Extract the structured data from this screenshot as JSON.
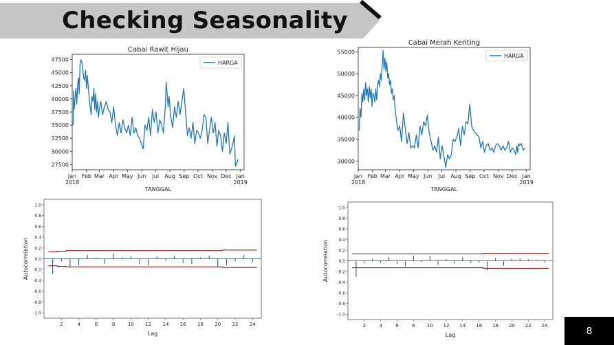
{
  "slide": {
    "title": "Checking Seasonality",
    "page_number": "8"
  },
  "chart_data": [
    {
      "id": "ts1",
      "type": "line",
      "title": "Cabai Rawit Hijau",
      "xlabel": "TANGGAL",
      "legend": {
        "label": "HARGA",
        "placement": "top-right"
      },
      "series": [
        {
          "name": "HARGA",
          "color": "#1f77b4"
        }
      ],
      "xlim": [
        0,
        373
      ],
      "ylim": [
        26500,
        48500
      ],
      "yticks": [
        27500,
        30000,
        32500,
        35000,
        37500,
        40000,
        42500,
        45000,
        47500
      ],
      "xticks": [
        {
          "pos": 0,
          "label": "Jan",
          "sub": "2018"
        },
        {
          "pos": 31,
          "label": "Feb"
        },
        {
          "pos": 59,
          "label": "Mar"
        },
        {
          "pos": 90,
          "label": "Apr"
        },
        {
          "pos": 120,
          "label": "May"
        },
        {
          "pos": 151,
          "label": "Jun"
        },
        {
          "pos": 181,
          "label": "Jul"
        },
        {
          "pos": 212,
          "label": "Aug"
        },
        {
          "pos": 243,
          "label": "Sep"
        },
        {
          "pos": 273,
          "label": "Oct"
        },
        {
          "pos": 304,
          "label": "Nov"
        },
        {
          "pos": 334,
          "label": "Dec"
        },
        {
          "pos": 365,
          "label": "Jan",
          "sub": "2019"
        }
      ],
      "x": [
        2,
        3,
        4,
        6,
        8,
        10,
        12,
        14,
        15,
        17,
        19,
        21,
        23,
        25,
        27,
        29,
        31,
        33,
        35,
        37,
        39,
        41,
        43,
        45,
        47,
        49,
        51,
        53,
        55,
        57,
        59,
        62,
        66,
        70,
        74,
        78,
        82,
        86,
        90,
        94,
        98,
        102,
        106,
        110,
        114,
        118,
        122,
        126,
        130,
        134,
        138,
        142,
        146,
        150,
        154,
        158,
        162,
        166,
        170,
        174,
        178,
        182,
        186,
        190,
        194,
        198,
        202,
        204,
        206,
        208,
        210,
        214,
        218,
        222,
        226,
        230,
        234,
        238,
        242,
        246,
        250,
        254,
        258,
        262,
        266,
        270,
        274,
        278,
        282,
        286,
        290,
        294,
        298,
        302,
        306,
        310,
        314,
        318,
        322,
        326,
        330,
        334,
        338,
        342,
        346,
        350,
        352,
        354,
        356,
        360
      ],
      "y": [
        35000,
        41500,
        38000,
        40000,
        42000,
        39000,
        43000,
        44000,
        41000,
        46500,
        47500,
        47000,
        45500,
        44000,
        43500,
        45500,
        42000,
        44500,
        42000,
        40000,
        38500,
        37000,
        40500,
        39500,
        42000,
        38000,
        41000,
        37500,
        39500,
        36500,
        38000,
        39500,
        37000,
        38500,
        39500,
        38000,
        37500,
        35500,
        38500,
        35000,
        33000,
        35500,
        33500,
        36000,
        34500,
        33500,
        35000,
        33000,
        36500,
        33500,
        34500,
        33000,
        32500,
        31500,
        30500,
        35000,
        34000,
        36500,
        33000,
        38000,
        35500,
        37500,
        33500,
        36000,
        35000,
        33500,
        38500,
        43200,
        41000,
        38500,
        40500,
        36500,
        34500,
        38500,
        36500,
        39500,
        37000,
        39500,
        42000,
        37500,
        33000,
        34500,
        32500,
        35500,
        31500,
        34000,
        33500,
        32500,
        34000,
        37000,
        36500,
        31500,
        34000,
        36500,
        33500,
        35500,
        31000,
        34000,
        33000,
        30000,
        33500,
        31500,
        35500,
        29500,
        30500,
        32000,
        33000,
        27200,
        27400,
        28500
      ]
    },
    {
      "id": "ts2",
      "type": "line",
      "title": "Cabai Merah Keriting",
      "xlabel": "TANGGAL",
      "legend": {
        "label": "HARGA",
        "placement": "top-right"
      },
      "series": [
        {
          "name": "HARGA",
          "color": "#1f77b4"
        }
      ],
      "xlim": [
        0,
        373
      ],
      "ylim": [
        28000,
        56000
      ],
      "yticks": [
        30000,
        35000,
        40000,
        45000,
        50000,
        55000
      ],
      "xticks": [
        {
          "pos": 0,
          "label": "Jan",
          "sub": "2018"
        },
        {
          "pos": 31,
          "label": "Feb"
        },
        {
          "pos": 59,
          "label": "Mar"
        },
        {
          "pos": 90,
          "label": "Apr"
        },
        {
          "pos": 120,
          "label": "May"
        },
        {
          "pos": 151,
          "label": "Jun"
        },
        {
          "pos": 181,
          "label": "Jul"
        },
        {
          "pos": 212,
          "label": "Aug"
        },
        {
          "pos": 243,
          "label": "Sep"
        },
        {
          "pos": 273,
          "label": "Oct"
        },
        {
          "pos": 304,
          "label": "Nov"
        },
        {
          "pos": 334,
          "label": "Dec"
        },
        {
          "pos": 365,
          "label": "Jan",
          "sub": "2019"
        }
      ],
      "x": [
        2,
        4,
        6,
        8,
        10,
        12,
        14,
        16,
        18,
        20,
        22,
        24,
        26,
        28,
        30,
        32,
        34,
        36,
        38,
        40,
        42,
        44,
        46,
        48,
        50,
        52,
        54,
        56,
        58,
        60,
        62,
        64,
        66,
        68,
        70,
        72,
        74,
        76,
        78,
        80,
        82,
        86,
        90,
        94,
        98,
        102,
        106,
        110,
        114,
        118,
        122,
        126,
        130,
        134,
        138,
        142,
        146,
        150,
        154,
        158,
        162,
        166,
        170,
        174,
        178,
        182,
        186,
        190,
        194,
        198,
        202,
        206,
        210,
        214,
        218,
        222,
        226,
        230,
        234,
        238,
        242,
        246,
        250,
        254,
        258,
        262,
        266,
        270,
        274,
        278,
        282,
        286,
        290,
        294,
        298,
        302,
        306,
        310,
        314,
        318,
        322,
        326,
        330,
        334,
        338,
        342,
        344,
        346,
        348,
        350,
        354,
        358,
        362
      ],
      "y": [
        37000,
        42000,
        40000,
        45500,
        43500,
        46500,
        44000,
        48000,
        45000,
        46500,
        43500,
        47000,
        44500,
        46500,
        42500,
        45500,
        45000,
        43500,
        46500,
        44000,
        47500,
        48500,
        47000,
        50000,
        48500,
        52000,
        55300,
        51000,
        53500,
        50500,
        52500,
        49000,
        50000,
        47500,
        48500,
        45500,
        46500,
        44000,
        45000,
        42000,
        40000,
        37000,
        38000,
        34500,
        41000,
        37500,
        34000,
        36500,
        33000,
        33500,
        33000,
        36000,
        33000,
        38000,
        36000,
        39000,
        38000,
        40500,
        36500,
        34500,
        32500,
        33500,
        32000,
        35500,
        30500,
        33500,
        31000,
        28500,
        31500,
        30500,
        31500,
        35000,
        34500,
        35500,
        37500,
        33500,
        38000,
        36000,
        39000,
        38500,
        43000,
        38000,
        37000,
        36500,
        36000,
        35500,
        33000,
        34500,
        32000,
        33500,
        34000,
        32500,
        33000,
        32000,
        33500,
        34000,
        33500,
        32500,
        33500,
        32500,
        33000,
        34500,
        32000,
        33000,
        32500,
        31500,
        33500,
        32000,
        34000,
        33500,
        34000,
        32500,
        33000
      ]
    },
    {
      "id": "acf1",
      "type": "bar",
      "ylabel": "Autocorrelation",
      "xlabel": "Lag",
      "xlim": [
        0,
        25
      ],
      "ylim": [
        -1.1,
        1.1
      ],
      "yticks": [
        -1.0,
        -0.8,
        -0.6,
        -0.4,
        -0.2,
        0.0,
        0.2,
        0.4,
        0.6,
        0.8,
        1.0
      ],
      "xticks": [
        2,
        4,
        6,
        8,
        10,
        12,
        14,
        16,
        18,
        20,
        22,
        24
      ],
      "lags": [
        1,
        2,
        3,
        4,
        5,
        6,
        7,
        8,
        9,
        10,
        11,
        12,
        13,
        14,
        15,
        16,
        17,
        18,
        19,
        20,
        21,
        22,
        23,
        24
      ],
      "values": [
        -0.28,
        -0.05,
        -0.16,
        -0.12,
        0.07,
        0.02,
        -0.09,
        0.1,
        0.03,
        0.05,
        -0.1,
        -0.13,
        0.04,
        -0.03,
        0.06,
        -0.08,
        -0.1,
        0.02,
        0.06,
        -0.15,
        -0.12,
        -0.05,
        0.07,
        -0.06
      ],
      "conf_upper": [
        0.13,
        0.14,
        0.15,
        0.15,
        0.15,
        0.15,
        0.15,
        0.15,
        0.15,
        0.15,
        0.15,
        0.15,
        0.15,
        0.15,
        0.15,
        0.15,
        0.15,
        0.15,
        0.15,
        0.15,
        0.16,
        0.16,
        0.16,
        0.16
      ],
      "conf_lower": [
        -0.13,
        -0.14,
        -0.15,
        -0.15,
        -0.15,
        -0.15,
        -0.15,
        -0.15,
        -0.15,
        -0.15,
        -0.15,
        -0.15,
        -0.15,
        -0.15,
        -0.15,
        -0.15,
        -0.15,
        -0.15,
        -0.15,
        -0.15,
        -0.16,
        -0.16,
        -0.16,
        -0.16
      ]
    },
    {
      "id": "acf2",
      "type": "bar",
      "ylabel": "Autocorrelation",
      "xlabel": "Lag",
      "xlim": [
        0,
        25
      ],
      "ylim": [
        -1.1,
        1.1
      ],
      "yticks": [
        -1.0,
        -0.8,
        -0.6,
        -0.4,
        -0.2,
        0.0,
        0.2,
        0.4,
        0.6,
        0.8,
        1.0
      ],
      "xticks": [
        2,
        4,
        6,
        8,
        10,
        12,
        14,
        16,
        18,
        20,
        22,
        24
      ],
      "lags": [
        1,
        2,
        3,
        4,
        5,
        6,
        7,
        8,
        9,
        10,
        11,
        12,
        13,
        14,
        15,
        16,
        17,
        18,
        19,
        20,
        21,
        22,
        23,
        24
      ],
      "values": [
        -0.3,
        -0.05,
        0.04,
        -0.04,
        0.07,
        -0.06,
        -0.1,
        0.09,
        -0.02,
        0.09,
        -0.07,
        0.03,
        -0.05,
        0.07,
        -0.04,
        -0.03,
        -0.18,
        0.05,
        -0.09,
        0.04,
        0.05,
        0.03,
        0.02,
        -0.03
      ],
      "conf_upper": [
        0.13,
        0.13,
        0.13,
        0.13,
        0.13,
        0.13,
        0.13,
        0.13,
        0.13,
        0.13,
        0.13,
        0.13,
        0.13,
        0.13,
        0.13,
        0.13,
        0.14,
        0.14,
        0.14,
        0.14,
        0.14,
        0.14,
        0.14,
        0.14
      ],
      "conf_lower": [
        -0.13,
        -0.13,
        -0.13,
        -0.13,
        -0.13,
        -0.13,
        -0.13,
        -0.13,
        -0.13,
        -0.13,
        -0.13,
        -0.13,
        -0.13,
        -0.13,
        -0.13,
        -0.13,
        -0.14,
        -0.14,
        -0.14,
        -0.14,
        -0.14,
        -0.14,
        -0.14,
        -0.14
      ]
    }
  ]
}
